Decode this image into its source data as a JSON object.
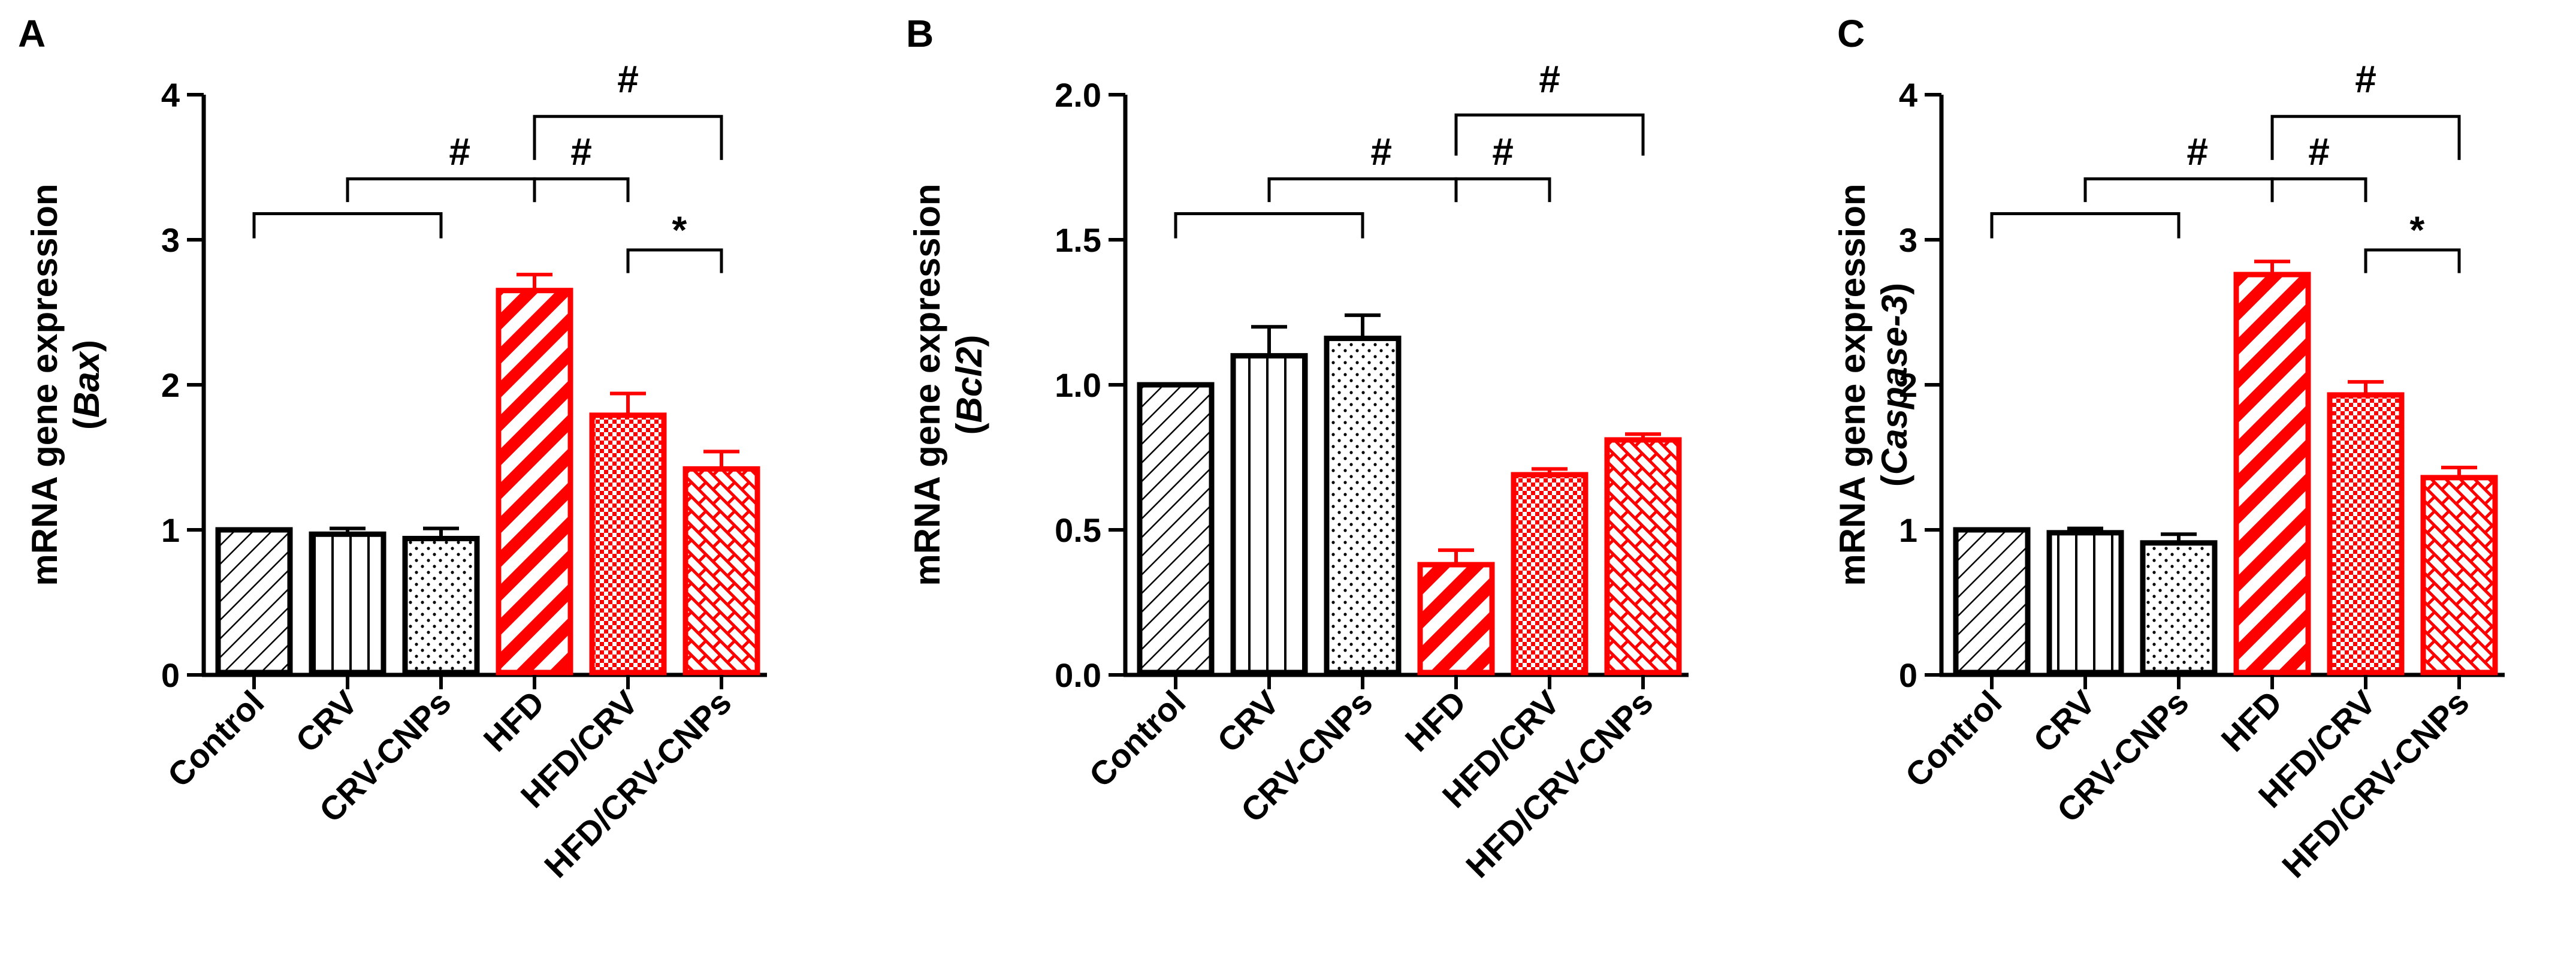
{
  "colors": {
    "black": "#000000",
    "red": "#ff0000"
  },
  "chart_data": [
    {
      "type": "bar",
      "panel_label": "A",
      "ylabel_line1": "mRNA gene expression",
      "ylabel_line2": "(",
      "ylabel_gene": "Bax",
      "ylabel_line2_end": ")",
      "categories": [
        "Control",
        "CRV",
        "CRV-CNPs",
        "HFD",
        "HFD/CRV",
        "HFD/CRV-CNPs"
      ],
      "values": [
        1.0,
        0.97,
        0.94,
        2.65,
        1.79,
        1.42
      ],
      "errors": [
        0.0,
        0.04,
        0.07,
        0.11,
        0.15,
        0.12
      ],
      "patterns": [
        "diagonal",
        "vertical",
        "dots",
        "diagonal-wide",
        "checker",
        "brick"
      ],
      "bar_colors": [
        "black",
        "black",
        "black",
        "red",
        "red",
        "red"
      ],
      "ylim": [
        0,
        4
      ],
      "yticks": [
        "0",
        "1",
        "2",
        "3",
        "4"
      ],
      "brackets": [
        {
          "from": 0,
          "to": 2,
          "y": 3.18,
          "tick": 0.17
        },
        {
          "from": 1,
          "to": 3,
          "y": 3.42,
          "tick": 0.16
        },
        {
          "from": 3,
          "to": 4,
          "y": 3.42,
          "tick": 0.16
        },
        {
          "from": 3,
          "to": 5,
          "y": 3.85,
          "tick": 0.3
        },
        {
          "from": 4,
          "to": 5,
          "y": 2.93,
          "tick": 0.16
        }
      ],
      "annotations": [
        {
          "text": "#",
          "x": 2.2,
          "y": 3.6
        },
        {
          "text": "#",
          "x": 3.5,
          "y": 3.6
        },
        {
          "text": "#",
          "x": 4.0,
          "y": 4.1
        },
        {
          "text": "*",
          "x": 4.55,
          "y": 3.06
        }
      ]
    },
    {
      "type": "bar",
      "panel_label": "B",
      "ylabel_line1": "mRNA gene expression",
      "ylabel_line2": "(",
      "ylabel_gene": "Bcl2",
      "ylabel_line2_end": ")",
      "categories": [
        "Control",
        "CRV",
        "CRV-CNPs",
        "HFD",
        "HFD/CRV",
        "HFD/CRV-CNPs"
      ],
      "values": [
        1.0,
        1.1,
        1.16,
        0.38,
        0.69,
        0.81
      ],
      "errors": [
        0.0,
        0.1,
        0.08,
        0.05,
        0.02,
        0.02
      ],
      "patterns": [
        "diagonal",
        "vertical",
        "dots",
        "diagonal-wide",
        "checker",
        "brick"
      ],
      "bar_colors": [
        "black",
        "black",
        "black",
        "red",
        "red",
        "red"
      ],
      "ylim": [
        0,
        2.0
      ],
      "yticks": [
        "0.0",
        "0.5",
        "1.0",
        "1.5",
        "2.0"
      ],
      "brackets": [
        {
          "from": 0,
          "to": 2,
          "y": 1.59,
          "tick": 0.085
        },
        {
          "from": 1,
          "to": 3,
          "y": 1.71,
          "tick": 0.08
        },
        {
          "from": 3,
          "to": 4,
          "y": 1.71,
          "tick": 0.08
        },
        {
          "from": 3,
          "to": 5,
          "y": 1.93,
          "tick": 0.14
        }
      ],
      "annotations": [
        {
          "text": "#",
          "x": 2.2,
          "y": 1.8
        },
        {
          "text": "#",
          "x": 3.5,
          "y": 1.8
        },
        {
          "text": "#",
          "x": 4.0,
          "y": 2.05
        }
      ]
    },
    {
      "type": "bar",
      "panel_label": "C",
      "ylabel_line1": "mRNA gene expression",
      "ylabel_line2": "(",
      "ylabel_gene": "Caspase-3",
      "ylabel_line2_end": ")",
      "categories": [
        "Control",
        "CRV",
        "CRV-CNPs",
        "HFD",
        "HFD/CRV",
        "HFD/CRV-CNPs"
      ],
      "values": [
        1.0,
        0.98,
        0.91,
        2.76,
        1.93,
        1.36
      ],
      "errors": [
        0.0,
        0.03,
        0.06,
        0.09,
        0.09,
        0.07
      ],
      "patterns": [
        "diagonal",
        "vertical",
        "dots",
        "diagonal-wide",
        "checker",
        "brick"
      ],
      "bar_colors": [
        "black",
        "black",
        "black",
        "red",
        "red",
        "red"
      ],
      "ylim": [
        0,
        4
      ],
      "yticks": [
        "0",
        "1",
        "2",
        "3",
        "4"
      ],
      "brackets": [
        {
          "from": 0,
          "to": 2,
          "y": 3.18,
          "tick": 0.17
        },
        {
          "from": 1,
          "to": 3,
          "y": 3.42,
          "tick": 0.16
        },
        {
          "from": 3,
          "to": 4,
          "y": 3.42,
          "tick": 0.16
        },
        {
          "from": 3,
          "to": 5,
          "y": 3.85,
          "tick": 0.3
        },
        {
          "from": 4,
          "to": 5,
          "y": 2.93,
          "tick": 0.16
        }
      ],
      "annotations": [
        {
          "text": "#",
          "x": 2.2,
          "y": 3.6
        },
        {
          "text": "#",
          "x": 3.5,
          "y": 3.6
        },
        {
          "text": "#",
          "x": 4.0,
          "y": 4.1
        },
        {
          "text": "*",
          "x": 4.55,
          "y": 3.06
        }
      ]
    }
  ]
}
